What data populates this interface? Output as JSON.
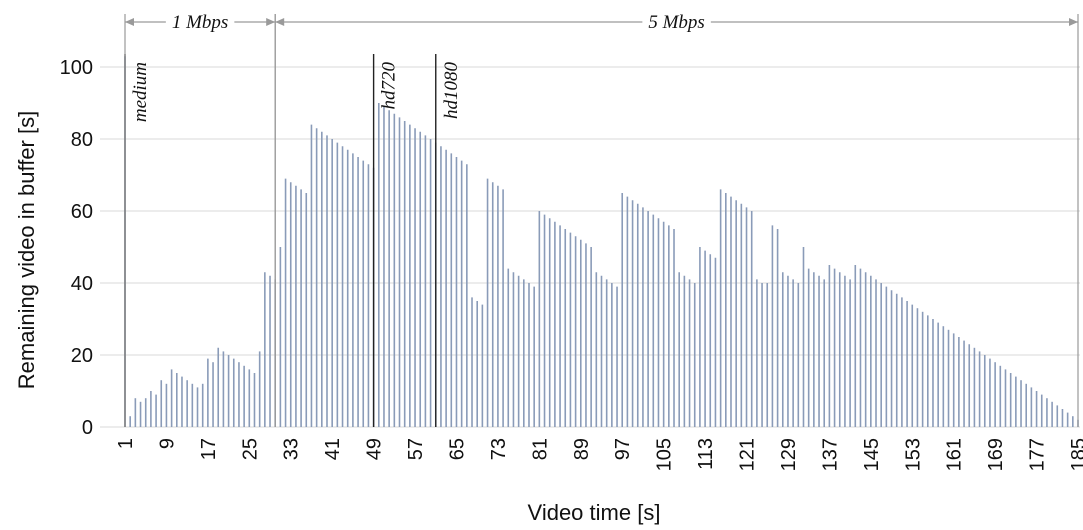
{
  "chart_data": {
    "type": "bar",
    "title": "",
    "xlabel": "Video time [s]",
    "ylabel": "Remaining video in buffer [s]",
    "xlim": [
      1,
      185
    ],
    "ylim": [
      0,
      110
    ],
    "yticks": [
      0,
      20,
      40,
      60,
      80,
      100
    ],
    "xticks": [
      1,
      9,
      17,
      25,
      33,
      41,
      49,
      57,
      65,
      73,
      81,
      89,
      97,
      105,
      113,
      121,
      129,
      137,
      145,
      153,
      161,
      169,
      177,
      185
    ],
    "grid": true,
    "bar_color": "#8a9bb8",
    "x": [
      1,
      2,
      3,
      4,
      5,
      6,
      7,
      8,
      9,
      10,
      11,
      12,
      13,
      14,
      15,
      16,
      17,
      18,
      19,
      20,
      21,
      22,
      23,
      24,
      25,
      26,
      27,
      28,
      29,
      30,
      31,
      32,
      33,
      34,
      35,
      36,
      37,
      38,
      39,
      40,
      41,
      42,
      43,
      44,
      45,
      46,
      47,
      48,
      49,
      50,
      51,
      52,
      53,
      54,
      55,
      56,
      57,
      58,
      59,
      60,
      61,
      62,
      63,
      64,
      65,
      66,
      67,
      68,
      69,
      70,
      71,
      72,
      73,
      74,
      75,
      76,
      77,
      78,
      79,
      80,
      81,
      82,
      83,
      84,
      85,
      86,
      87,
      88,
      89,
      90,
      91,
      92,
      93,
      94,
      95,
      96,
      97,
      98,
      99,
      100,
      101,
      102,
      103,
      104,
      105,
      106,
      107,
      108,
      109,
      110,
      111,
      112,
      113,
      114,
      115,
      116,
      117,
      118,
      119,
      120,
      121,
      122,
      123,
      124,
      125,
      126,
      127,
      128,
      129,
      130,
      131,
      132,
      133,
      134,
      135,
      136,
      137,
      138,
      139,
      140,
      141,
      142,
      143,
      144,
      145,
      146,
      147,
      148,
      149,
      150,
      151,
      152,
      153,
      154,
      155,
      156,
      157,
      158,
      159,
      160,
      161,
      162,
      163,
      164,
      165,
      166,
      167,
      168,
      169,
      170,
      171,
      172,
      173,
      174,
      175,
      176,
      177,
      178,
      179,
      180,
      181,
      182,
      183,
      184,
      185
    ],
    "values": [
      103,
      3,
      8,
      7,
      8,
      10,
      9,
      13,
      12,
      16,
      15,
      14,
      13,
      12,
      11,
      12,
      19,
      18,
      22,
      21,
      20,
      19,
      18,
      17,
      16,
      15,
      21,
      43,
      42,
      41,
      50,
      69,
      68,
      67,
      66,
      65,
      84,
      83,
      82,
      81,
      80,
      79,
      78,
      77,
      76,
      75,
      74,
      73,
      72,
      90,
      89,
      88,
      87,
      86,
      85,
      84,
      83,
      82,
      81,
      80,
      79,
      78,
      77,
      76,
      75,
      74,
      73,
      36,
      35,
      34,
      69,
      68,
      67,
      66,
      44,
      43,
      42,
      41,
      40,
      39,
      60,
      59,
      58,
      57,
      56,
      55,
      54,
      53,
      52,
      51,
      50,
      43,
      42,
      41,
      40,
      39,
      65,
      64,
      63,
      62,
      61,
      60,
      59,
      58,
      57,
      56,
      55,
      43,
      42,
      41,
      40,
      50,
      49,
      48,
      47,
      66,
      65,
      64,
      63,
      62,
      61,
      60,
      41,
      40,
      40,
      56,
      55,
      43,
      42,
      41,
      40,
      50,
      44,
      43,
      42,
      41,
      45,
      44,
      43,
      42,
      41,
      45,
      44,
      43,
      42,
      41,
      40,
      39,
      38,
      37,
      36,
      35,
      34,
      33,
      32,
      31,
      30,
      29,
      28,
      27,
      26,
      25,
      24,
      23,
      22,
      21,
      20,
      19,
      18,
      17,
      16,
      15,
      14,
      13,
      12,
      11,
      10,
      9,
      8,
      7,
      6,
      5,
      4,
      3,
      2
    ],
    "annotations": [
      {
        "text": "medium",
        "x": 1
      },
      {
        "text": "hd720",
        "x": 49
      },
      {
        "text": "hd1080",
        "x": 61
      }
    ],
    "bandwidth_spans": [
      {
        "text": "1 Mbps",
        "from": 1,
        "to": 30
      },
      {
        "text": "5 Mbps",
        "from": 30,
        "to": 185
      }
    ]
  }
}
